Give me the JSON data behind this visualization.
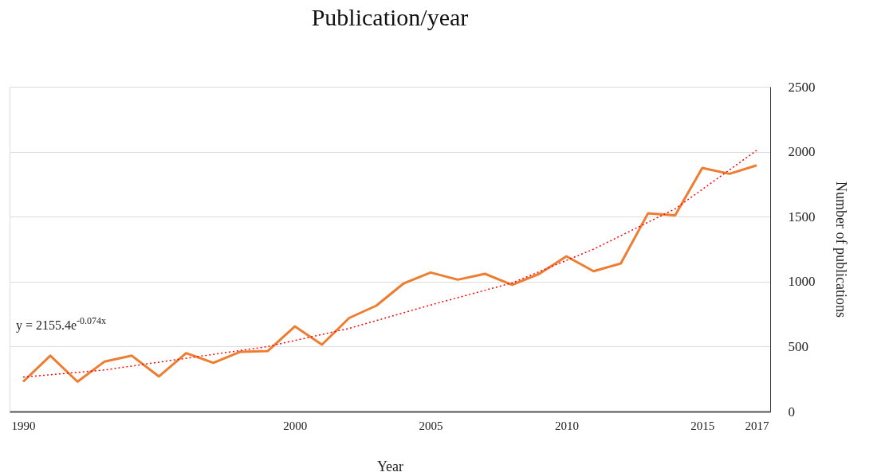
{
  "chart_data": {
    "type": "line",
    "title": "Publication/year",
    "xlabel": "Year",
    "ylabel": "Number of publications",
    "x": [
      1990,
      1991,
      1992,
      1993,
      1994,
      1995,
      1996,
      1997,
      1998,
      1999,
      2000,
      2001,
      2002,
      2003,
      2004,
      2005,
      2006,
      2007,
      2008,
      2009,
      2010,
      2011,
      2012,
      2013,
      2014,
      2015,
      2016,
      2017
    ],
    "series": [
      {
        "color": "#ed7d31",
        "line_style": "solid",
        "values": [
          230,
          430,
          230,
          385,
          430,
          270,
          450,
          375,
          460,
          465,
          655,
          515,
          720,
          815,
          985,
          1070,
          1015,
          1060,
          975,
          1060,
          1195,
          1080,
          1140,
          1525,
          1510,
          1875,
          1830,
          1895
        ]
      },
      {
        "type": "line",
        "color": "#ff0000",
        "line_style": "dotted",
        "x": [
          1990,
          1993,
          1996,
          1999,
          2002,
          2005,
          2008,
          2011,
          2014,
          2017
        ],
        "values": [
          265,
          320,
          410,
          500,
          640,
          820,
          990,
          1250,
          1560,
          2010
        ]
      }
    ],
    "xlim": [
      1989.5,
      2017.5
    ],
    "xticks": [
      1990,
      2000,
      2005,
      2010,
      2015,
      2017
    ],
    "ylim": [
      0,
      2500
    ],
    "yticks": [
      0,
      500,
      1000,
      1500,
      2000,
      2500
    ],
    "grid": "y",
    "marker": "none",
    "annotations": [
      "y = 2155.4e$^{-0.074x}$"
    ]
  }
}
